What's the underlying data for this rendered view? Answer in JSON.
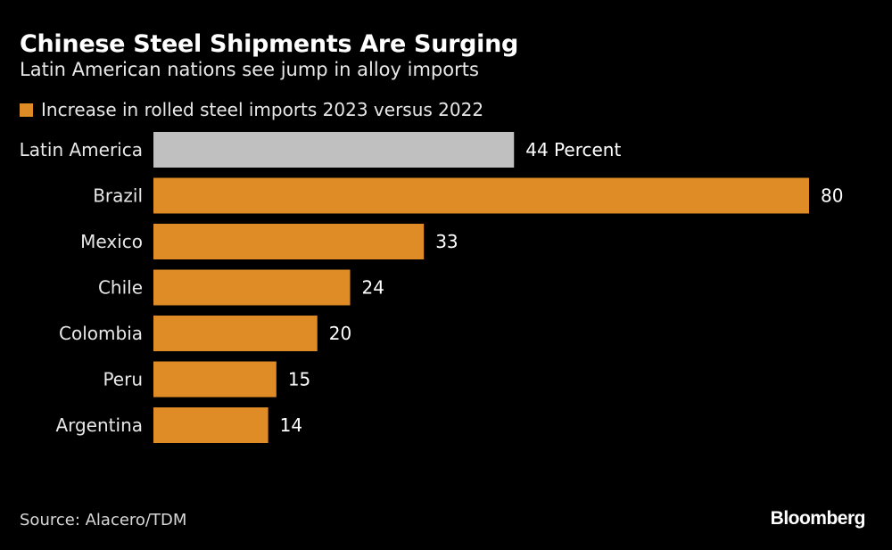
{
  "chart_data": {
    "type": "bar",
    "orientation": "horizontal",
    "title": "Chinese Steel Shipments Are Surging",
    "subtitle": "Latin American nations see jump in alloy imports",
    "categories": [
      "Latin America",
      "Brazil",
      "Mexico",
      "Chile",
      "Colombia",
      "Peru",
      "Argentina"
    ],
    "series": [
      {
        "name": "Increase in rolled steel imports 2023 versus 2022",
        "values": [
          44,
          80,
          33,
          24,
          20,
          15,
          14
        ]
      }
    ],
    "data_labels": [
      "44 Percent",
      "80",
      "33",
      "24",
      "20",
      "15",
      "14"
    ],
    "xlim": [
      0,
      80
    ],
    "grid": false,
    "legend_placement": "top-left",
    "colors": {
      "highlight": "#c0c0c0",
      "bar": "#e08c26",
      "background": "#000000"
    }
  },
  "source": "Source: Alacero/TDM",
  "logo": "Bloomberg"
}
